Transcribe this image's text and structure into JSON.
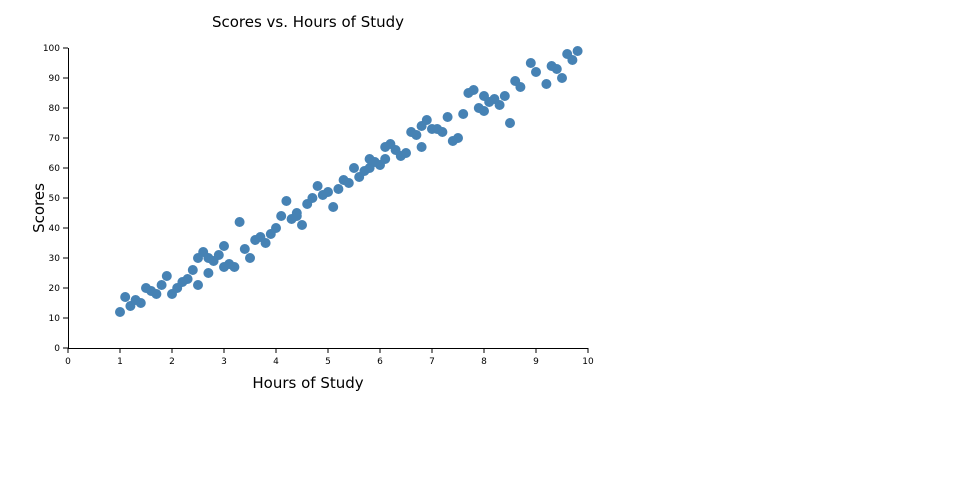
{
  "chart_data": {
    "type": "scatter",
    "title": "Scores vs. Hours of Study",
    "xlabel": "Hours of Study",
    "ylabel": "Scores",
    "xlim": [
      0,
      10
    ],
    "ylim": [
      0,
      100
    ],
    "xticks": [
      "0",
      "1",
      "2",
      "3",
      "4",
      "5",
      "6",
      "7",
      "8",
      "9",
      "10"
    ],
    "yticks": [
      "0",
      "10",
      "20",
      "30",
      "40",
      "50",
      "60",
      "70",
      "80",
      "90",
      "100"
    ],
    "grid": false,
    "marker_color": "#4682b4",
    "series": [
      {
        "points": [
          [
            1.0,
            12
          ],
          [
            1.1,
            17
          ],
          [
            1.2,
            14
          ],
          [
            1.3,
            16
          ],
          [
            1.4,
            15
          ],
          [
            1.5,
            20
          ],
          [
            1.6,
            19
          ],
          [
            1.7,
            18
          ],
          [
            1.8,
            21
          ],
          [
            1.9,
            24
          ],
          [
            2.0,
            18
          ],
          [
            2.1,
            20
          ],
          [
            2.2,
            22
          ],
          [
            2.3,
            23
          ],
          [
            2.4,
            26
          ],
          [
            2.5,
            21
          ],
          [
            2.5,
            30
          ],
          [
            2.6,
            32
          ],
          [
            2.7,
            25
          ],
          [
            2.7,
            30
          ],
          [
            2.8,
            29
          ],
          [
            2.9,
            31
          ],
          [
            3.0,
            34
          ],
          [
            3.0,
            27
          ],
          [
            3.1,
            28
          ],
          [
            3.2,
            27
          ],
          [
            3.3,
            42
          ],
          [
            3.4,
            33
          ],
          [
            3.5,
            30
          ],
          [
            3.6,
            36
          ],
          [
            3.7,
            37
          ],
          [
            3.8,
            35
          ],
          [
            3.9,
            38
          ],
          [
            4.0,
            40
          ],
          [
            4.1,
            44
          ],
          [
            4.2,
            49
          ],
          [
            4.3,
            43
          ],
          [
            4.4,
            44
          ],
          [
            4.4,
            45
          ],
          [
            4.5,
            41
          ],
          [
            4.6,
            48
          ],
          [
            4.7,
            50
          ],
          [
            4.8,
            54
          ],
          [
            4.9,
            51
          ],
          [
            5.0,
            52
          ],
          [
            5.1,
            47
          ],
          [
            5.2,
            53
          ],
          [
            5.3,
            56
          ],
          [
            5.4,
            55
          ],
          [
            5.5,
            60
          ],
          [
            5.6,
            57
          ],
          [
            5.7,
            59
          ],
          [
            5.8,
            60
          ],
          [
            5.8,
            63
          ],
          [
            5.9,
            62
          ],
          [
            6.0,
            61
          ],
          [
            6.1,
            63
          ],
          [
            6.1,
            67
          ],
          [
            6.2,
            68
          ],
          [
            6.3,
            66
          ],
          [
            6.4,
            64
          ],
          [
            6.5,
            65
          ],
          [
            6.6,
            72
          ],
          [
            6.7,
            71
          ],
          [
            6.8,
            74
          ],
          [
            6.8,
            67
          ],
          [
            6.9,
            76
          ],
          [
            7.0,
            73
          ],
          [
            7.1,
            73
          ],
          [
            7.2,
            72
          ],
          [
            7.3,
            77
          ],
          [
            7.4,
            69
          ],
          [
            7.5,
            70
          ],
          [
            7.6,
            78
          ],
          [
            7.7,
            85
          ],
          [
            7.8,
            86
          ],
          [
            7.9,
            80
          ],
          [
            8.0,
            79
          ],
          [
            8.0,
            84
          ],
          [
            8.1,
            82
          ],
          [
            8.2,
            83
          ],
          [
            8.3,
            81
          ],
          [
            8.4,
            84
          ],
          [
            8.5,
            75
          ],
          [
            8.6,
            89
          ],
          [
            8.7,
            87
          ],
          [
            8.9,
            95
          ],
          [
            9.0,
            92
          ],
          [
            9.2,
            88
          ],
          [
            9.3,
            94
          ],
          [
            9.4,
            93
          ],
          [
            9.5,
            90
          ],
          [
            9.6,
            98
          ],
          [
            9.7,
            96
          ],
          [
            9.8,
            99
          ]
        ]
      }
    ]
  }
}
